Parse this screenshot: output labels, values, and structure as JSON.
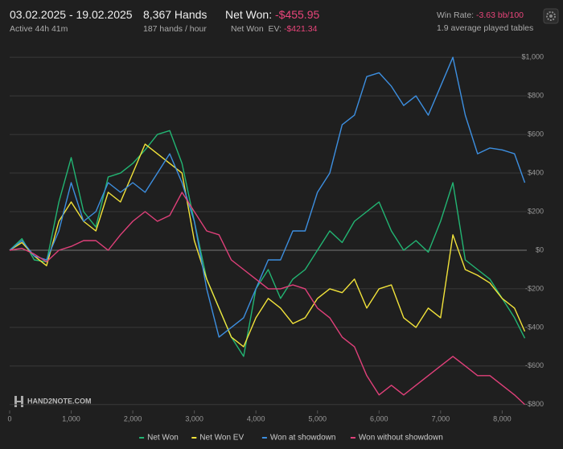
{
  "header": {
    "date_range": "03.02.2025 - 19.02.2025",
    "active": "Active 44h 41m",
    "hands": "8,367 Hands",
    "rate": "187 hands / hour",
    "net_won_label": "Net Won:",
    "net_won": "-$455.95",
    "net_won_ev_label": "Net Won  EV:",
    "net_won_ev": "-$421.34",
    "win_rate_label": "Win Rate:",
    "win_rate": "-3.63 bb/100",
    "tables": "1.9 average played tables"
  },
  "logo": "HAND2NOTE.COM",
  "chart_data": {
    "type": "line",
    "x": [
      0,
      200,
      400,
      600,
      800,
      1000,
      1200,
      1400,
      1600,
      1800,
      2000,
      2200,
      2400,
      2600,
      2800,
      3000,
      3200,
      3400,
      3600,
      3800,
      4000,
      4200,
      4400,
      4600,
      4800,
      5000,
      5200,
      5400,
      5600,
      5800,
      6000,
      6200,
      6400,
      6600,
      6800,
      7000,
      7200,
      7400,
      7600,
      7800,
      8000,
      8200,
      8367
    ],
    "series": [
      {
        "name": "Net Won",
        "color": "#22b573",
        "values": [
          0,
          60,
          -50,
          -60,
          250,
          480,
          200,
          120,
          380,
          400,
          450,
          520,
          600,
          620,
          450,
          150,
          -150,
          -300,
          -450,
          -550,
          -200,
          -100,
          -250,
          -150,
          -100,
          0,
          100,
          40,
          150,
          200,
          250,
          100,
          0,
          50,
          -10,
          150,
          350,
          -50,
          -100,
          -150,
          -250,
          -350,
          -456
        ]
      },
      {
        "name": "Net Won  EV",
        "color": "#f2e33a",
        "values": [
          0,
          40,
          -30,
          -80,
          150,
          250,
          150,
          100,
          300,
          250,
          400,
          550,
          500,
          450,
          400,
          50,
          -150,
          -300,
          -450,
          -500,
          -350,
          -250,
          -300,
          -380,
          -350,
          -250,
          -200,
          -220,
          -150,
          -300,
          -200,
          -180,
          -350,
          -400,
          -300,
          -350,
          80,
          -100,
          -130,
          -170,
          -250,
          -300,
          -421
        ]
      },
      {
        "name": "Won at showdown",
        "color": "#3d8fe0",
        "values": [
          0,
          50,
          -30,
          -50,
          100,
          350,
          150,
          200,
          350,
          300,
          350,
          300,
          400,
          500,
          350,
          150,
          -200,
          -450,
          -400,
          -350,
          -200,
          -50,
          -50,
          100,
          100,
          300,
          400,
          650,
          700,
          900,
          920,
          850,
          750,
          800,
          700,
          850,
          1000,
          700,
          500,
          530,
          520,
          500,
          350
        ]
      },
      {
        "name": "Won without showdown",
        "color": "#e0407a",
        "values": [
          0,
          10,
          -20,
          -60,
          0,
          20,
          50,
          50,
          0,
          80,
          150,
          200,
          150,
          180,
          300,
          200,
          100,
          80,
          -50,
          -100,
          -150,
          -200,
          -200,
          -180,
          -200,
          -300,
          -350,
          -450,
          -500,
          -650,
          -750,
          -700,
          -750,
          -700,
          -650,
          -600,
          -550,
          -600,
          -650,
          -650,
          -700,
          -750,
          -800
        ]
      }
    ],
    "xlim": [
      0,
      8400
    ],
    "xticks": [
      0,
      {
        "value": 1000,
        "label": "1,000"
      },
      {
        "value": 2000,
        "label": "2,000"
      },
      {
        "value": 3000,
        "label": "3,000"
      },
      {
        "value": 4000,
        "label": "4,000"
      },
      {
        "value": 5000,
        "label": "5,000"
      },
      {
        "value": 6000,
        "label": "6,000"
      },
      {
        "value": 7000,
        "label": "7,000"
      },
      {
        "value": 8000,
        "label": "8,000"
      }
    ],
    "ylim": [
      -830,
      1080
    ],
    "yticks": [
      {
        "value": 1000,
        "label": "$1,000"
      },
      {
        "value": 800,
        "label": "$800"
      },
      {
        "value": 600,
        "label": "$600"
      },
      {
        "value": 400,
        "label": "$400"
      },
      {
        "value": 200,
        "label": "$200"
      },
      {
        "value": 0,
        "label": "$0"
      },
      {
        "value": -200,
        "label": "-$200"
      },
      {
        "value": -400,
        "label": "-$400"
      },
      {
        "value": -600,
        "label": "-$600"
      },
      {
        "value": -800,
        "label": "-$800"
      }
    ],
    "grid": true,
    "legend": "bottom"
  }
}
